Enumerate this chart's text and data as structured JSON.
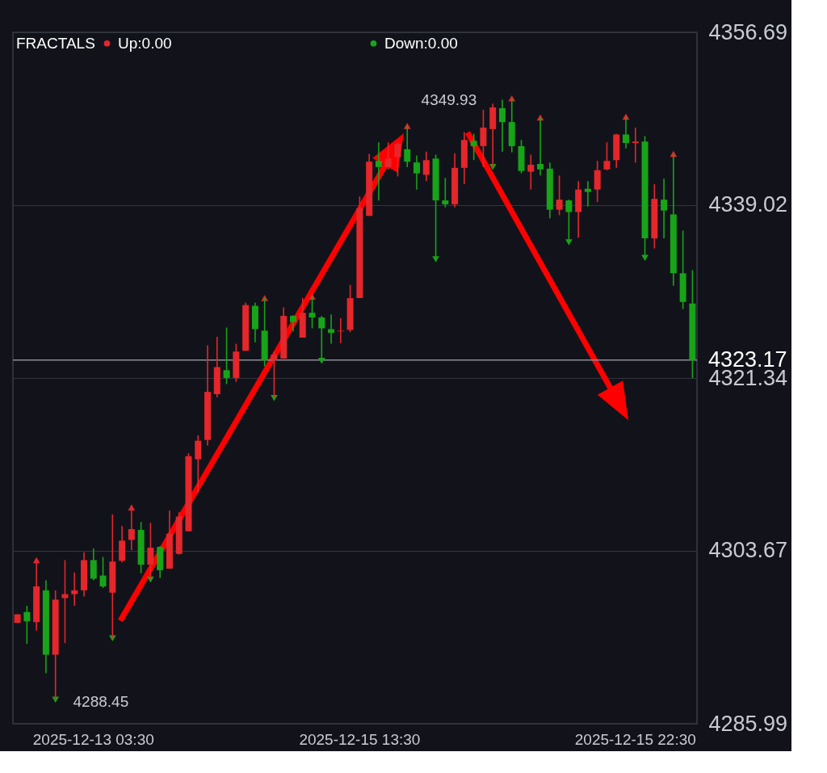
{
  "chart_data": {
    "type": "candlestick",
    "categories": [
      null,
      null,
      null,
      null,
      null,
      null,
      null,
      null,
      "2025-12-13 03:30",
      null,
      null,
      null,
      null,
      null,
      null,
      null,
      null,
      null,
      null,
      null,
      null,
      null,
      null,
      null,
      null,
      null,
      null,
      null,
      null,
      null,
      null,
      null,
      null,
      null,
      null,
      null,
      "2025-12-15 13:30",
      null,
      null,
      null,
      null,
      null,
      null,
      null,
      null,
      null,
      null,
      null,
      null,
      null,
      null,
      null,
      null,
      null,
      null,
      null,
      null,
      null,
      null,
      null,
      null,
      null,
      null,
      null,
      null,
      "2025-12-15 22:30",
      null,
      null,
      null,
      null,
      null,
      null
    ],
    "ohlc": [
      [
        4296.3,
        4297.18,
        4296.3,
        4297.18
      ],
      [
        4297.41,
        4298.05,
        4294.16,
        4296.46
      ],
      [
        4296.38,
        4302.72,
        4295.51,
        4300.03
      ],
      [
        4299.63,
        4300.66,
        4291.15,
        4293.05
      ],
      [
        4293.05,
        4299.63,
        4288.45,
        4298.68
      ],
      [
        4298.84,
        4302.72,
        4294.24,
        4299.24
      ],
      [
        4299.24,
        4301.46,
        4298.05,
        4299.63
      ],
      [
        4299.63,
        4303.52,
        4299.0,
        4302.72
      ],
      [
        4302.72,
        4303.91,
        4300.66,
        4300.82
      ],
      [
        4301.14,
        4303.04,
        4299.87,
        4300.03
      ],
      [
        4299.39,
        4307.4,
        4294.72,
        4302.57
      ],
      [
        4302.65,
        4306.21,
        4302.49,
        4304.71
      ],
      [
        4304.79,
        4308.11,
        4303.75,
        4305.89
      ],
      [
        4305.81,
        4306.61,
        4301.38,
        4302.25
      ],
      [
        4302.25,
        4306.53,
        4300.74,
        4303.99
      ],
      [
        4304.07,
        4304.15,
        4300.9,
        4301.69
      ],
      [
        4301.85,
        4307.8,
        4301.85,
        4305.42
      ],
      [
        4303.36,
        4307.64,
        4303.28,
        4307.16
      ],
      [
        4305.66,
        4313.66,
        4305.66,
        4313.34
      ],
      [
        4313.03,
        4315.48,
        4309.62,
        4314.93
      ],
      [
        4315.01,
        4324.68,
        4314.45,
        4319.92
      ],
      [
        4319.68,
        4325.55,
        4319.37,
        4322.46
      ],
      [
        4322.14,
        4326.5,
        4320.72,
        4321.35
      ],
      [
        4321.35,
        4324.84,
        4320.95,
        4324.04
      ],
      [
        4324.12,
        4329.04,
        4324.12,
        4328.8
      ],
      [
        4328.72,
        4329.04,
        4325.0,
        4326.34
      ],
      [
        4326.18,
        4329.51,
        4322.54,
        4323.17
      ],
      [
        4323.17,
        4324.04,
        4319.29,
        4323.73
      ],
      [
        4323.33,
        4328.56,
        4323.33,
        4327.69
      ],
      [
        4327.69,
        4327.77,
        4326.11,
        4327.06
      ],
      [
        4325.47,
        4329.51,
        4325.47,
        4328.01
      ],
      [
        4328.01,
        4329.67,
        4326.42,
        4327.53
      ],
      [
        4327.53,
        4327.69,
        4323.09,
        4326.42
      ],
      [
        4326.34,
        4327.85,
        4324.84,
        4325.95
      ],
      [
        4326.11,
        4327.45,
        4324.92,
        4326.18
      ],
      [
        4326.26,
        4330.86,
        4326.03,
        4329.51
      ],
      [
        4329.51,
        4339.9,
        4329.51,
        4338.71
      ],
      [
        4337.92,
        4344.26,
        4337.92,
        4343.46
      ],
      [
        4343.54,
        4345.44,
        4339.5,
        4342.91
      ],
      [
        4342.91,
        4345.44,
        4342.67,
        4343.78
      ],
      [
        4343.94,
        4345.44,
        4341.96,
        4345.29
      ],
      [
        4344.73,
        4347.11,
        4342.91,
        4343.46
      ],
      [
        4343.38,
        4344.1,
        4340.61,
        4342.27
      ],
      [
        4342.12,
        4344.49,
        4341.48,
        4343.62
      ],
      [
        4343.78,
        4344.18,
        4333.48,
        4339.5
      ],
      [
        4339.5,
        4341.8,
        4338.79,
        4339.1
      ],
      [
        4339.1,
        4344.33,
        4338.79,
        4342.83
      ],
      [
        4342.83,
        4346.47,
        4341.16,
        4345.68
      ],
      [
        4345.6,
        4346.32,
        4343.62,
        4345.05
      ],
      [
        4345.05,
        4348.77,
        4342.91,
        4346.95
      ],
      [
        4346.79,
        4349.41,
        4342.91,
        4349.01
      ],
      [
        4348.93,
        4349.8,
        4344.49,
        4347.51
      ],
      [
        4347.51,
        4349.93,
        4344.41,
        4345.05
      ],
      [
        4345.05,
        4345.68,
        4342.27,
        4342.51
      ],
      [
        4342.43,
        4344.18,
        4340.61,
        4343.15
      ],
      [
        4343.23,
        4347.98,
        4342.04,
        4342.67
      ],
      [
        4342.75,
        4343.38,
        4337.68,
        4338.55
      ],
      [
        4338.55,
        4342.04,
        4337.99,
        4339.58
      ],
      [
        4339.5,
        4339.58,
        4335.22,
        4338.31
      ],
      [
        4338.31,
        4341.48,
        4335.7,
        4340.61
      ],
      [
        4340.69,
        4341.48,
        4338.87,
        4340.37
      ],
      [
        4340.61,
        4343.54,
        4339.34,
        4342.59
      ],
      [
        4342.67,
        4345.44,
        4342.59,
        4343.54
      ],
      [
        4343.62,
        4346.32,
        4342.83,
        4346.24
      ],
      [
        4346.24,
        4348.06,
        4344.81,
        4345.37
      ],
      [
        4345.37,
        4346.95,
        4343.38,
        4345.52
      ],
      [
        4345.52,
        4346.08,
        4333.63,
        4335.62
      ],
      [
        4335.62,
        4341.16,
        4334.59,
        4339.66
      ],
      [
        4339.58,
        4341.72,
        4335.62,
        4338.47
      ],
      [
        4338.07,
        4344.26,
        4330.78,
        4332.05
      ],
      [
        4332.05,
        4336.41,
        4328.4,
        4329.12
      ],
      [
        4328.96,
        4332.37,
        4321.34,
        4323.17
      ]
    ],
    "colors": [
      "#e5262b",
      "#18a418",
      "#e5262b",
      "#18a418",
      "#e5262b",
      "#e5262b",
      "#e5262b",
      "#e5262b",
      "#18a418",
      "#18a418",
      "#e5262b",
      "#e5262b",
      "#e5262b",
      "#18a418",
      "#e5262b",
      "#18a418",
      "#e5262b",
      "#e5262b",
      "#e5262b",
      "#e5262b",
      "#e5262b",
      "#e5262b",
      "#18a418",
      "#e5262b",
      "#e5262b",
      "#18a418",
      "#18a418",
      "#e5262b",
      "#e5262b",
      "#18a418",
      "#e5262b",
      "#18a418",
      "#18a418",
      "#18a418",
      "#e5262b",
      "#e5262b",
      "#e5262b",
      "#e5262b",
      "#18a418",
      "#e5262b",
      "#e5262b",
      "#18a418",
      "#18a418",
      "#e5262b",
      "#18a418",
      "#18a418",
      "#e5262b",
      "#e5262b",
      "#18a418",
      "#e5262b",
      "#e5262b",
      "#18a418",
      "#18a418",
      "#18a418",
      "#e5262b",
      "#18a418",
      "#18a418",
      "#e5262b",
      "#18a418",
      "#e5262b",
      "#18a418",
      "#e5262b",
      "#e5262b",
      "#e5262b",
      "#18a418",
      "#e5262b",
      "#18a418",
      "#e5262b",
      "#18a418",
      "#18a418",
      "#18a418",
      "#18a418"
    ],
    "series": [
      {
        "name": "Up:0.00",
        "type": "scatter",
        "color": "#e5262b",
        "values": [
          null,
          null,
          4302.72,
          null,
          null,
          null,
          null,
          null,
          null,
          null,
          null,
          null,
          4308.11,
          null,
          null,
          null,
          null,
          null,
          null,
          null,
          null,
          null,
          null,
          null,
          null,
          null,
          4329.51,
          null,
          null,
          null,
          null,
          4329.67,
          null,
          null,
          null,
          null,
          null,
          null,
          null,
          null,
          null,
          4347.11,
          null,
          null,
          null,
          null,
          null,
          null,
          null,
          null,
          null,
          null,
          4349.93,
          null,
          null,
          4347.98,
          null,
          null,
          null,
          null,
          null,
          null,
          null,
          null,
          4348.06,
          null,
          null,
          null,
          null,
          4344.26,
          null,
          null
        ]
      },
      {
        "name": "Down:0.00",
        "type": "scatter",
        "color": "#18a418",
        "values": [
          null,
          null,
          null,
          null,
          4288.45,
          null,
          null,
          null,
          null,
          null,
          4294.72,
          null,
          null,
          null,
          4300.74,
          null,
          null,
          null,
          null,
          null,
          null,
          null,
          null,
          null,
          null,
          null,
          null,
          4319.29,
          null,
          null,
          null,
          null,
          4323.09,
          null,
          null,
          null,
          null,
          null,
          null,
          null,
          null,
          null,
          null,
          null,
          4333.48,
          null,
          null,
          null,
          null,
          null,
          4342.91,
          null,
          null,
          null,
          null,
          null,
          null,
          null,
          4335.22,
          null,
          null,
          null,
          null,
          null,
          null,
          null,
          4333.63,
          null,
          null,
          null,
          null,
          null
        ]
      }
    ],
    "marker": "triangle",
    "legend_title": "FRACTALS",
    "legend": "top left",
    "ylim": [
      4285.99,
      4356.69
    ],
    "yticks": [
      4285.99,
      4303.67,
      4321.34,
      4339.02,
      4356.69
    ],
    "grid": "y",
    "ref_lines": [
      {
        "axis": "y",
        "value": 4323.17,
        "label": "4323.17",
        "color": "#8a8d99"
      }
    ],
    "annotations": [
      "4349.93",
      "4288.45"
    ]
  }
}
